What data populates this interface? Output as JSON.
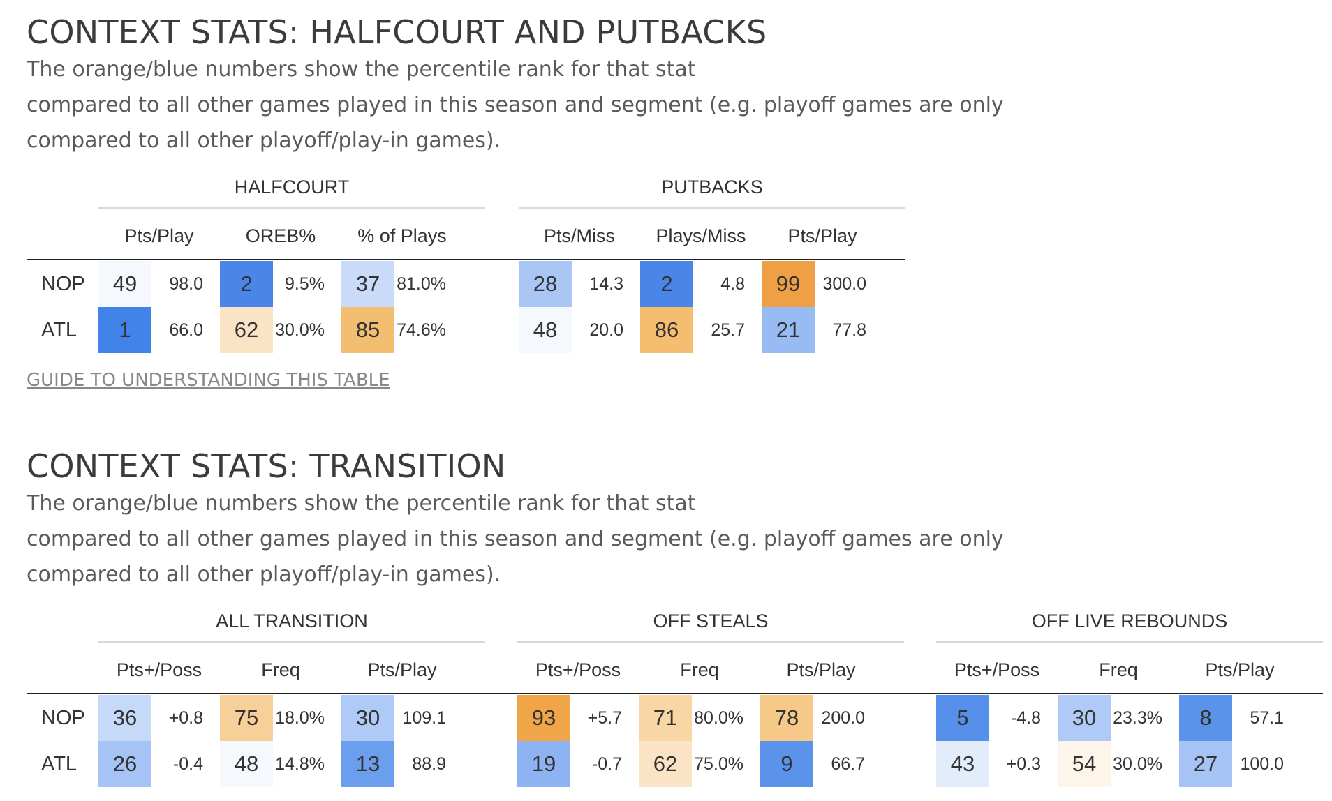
{
  "sections": [
    {
      "title": "CONTEXT STATS: HALFCOURT AND PUTBACKS",
      "description": [
        "The orange/blue numbers show the percentile rank for that stat",
        "compared to all other games played in this season and segment (e.g. playoff games are only",
        "compared to all other playoff/play-in games)."
      ],
      "groups": [
        {
          "label": "HALFCOURT",
          "columns": [
            "Pts/Play",
            "OREB%",
            "% of Plays"
          ]
        },
        {
          "label": "PUTBACKS",
          "columns": [
            "Pts/Miss",
            "Plays/Miss",
            "Pts/Play"
          ]
        }
      ],
      "rows": [
        {
          "team": "NOP",
          "cells": [
            {
              "rank": "49",
              "value": "98.0",
              "color": "#f5f8fd"
            },
            {
              "rank": "2",
              "value": "9.5%",
              "color": "#4a86e8"
            },
            {
              "rank": "37",
              "value": "81.0%",
              "color": "#c9dbf8"
            },
            {
              "rank": "28",
              "value": "14.3",
              "color": "#a9c6f5"
            },
            {
              "rank": "2",
              "value": "4.8",
              "color": "#4a86e8"
            },
            {
              "rank": "99",
              "value": "300.0",
              "color": "#f0a044"
            }
          ]
        },
        {
          "team": "ATL",
          "cells": [
            {
              "rank": "1",
              "value": "66.0",
              "color": "#4283ea"
            },
            {
              "rank": "62",
              "value": "30.0%",
              "color": "#fbe3c5"
            },
            {
              "rank": "85",
              "value": "74.6%",
              "color": "#f4be72"
            },
            {
              "rank": "48",
              "value": "20.0",
              "color": "#f5f8fd"
            },
            {
              "rank": "86",
              "value": "25.7",
              "color": "#f4bd70"
            },
            {
              "rank": "21",
              "value": "77.8",
              "color": "#98bbf4"
            }
          ]
        }
      ],
      "guide_link": "GUIDE TO UNDERSTANDING THIS TABLE"
    },
    {
      "title": "CONTEXT STATS: TRANSITION",
      "description": [
        "The orange/blue numbers show the percentile rank for that stat",
        "compared to all other games played in this season and segment (e.g. playoff games are only",
        "compared to all other playoff/play-in games)."
      ],
      "groups": [
        {
          "label": "ALL TRANSITION",
          "columns": [
            "Pts+/Poss",
            "Freq",
            "Pts/Play"
          ]
        },
        {
          "label": "OFF STEALS",
          "columns": [
            "Pts+/Poss",
            "Freq",
            "Pts/Play"
          ]
        },
        {
          "label": "OFF LIVE REBOUNDS",
          "columns": [
            "Pts+/Poss",
            "Freq",
            "Pts/Play"
          ]
        }
      ],
      "rows": [
        {
          "team": "NOP",
          "cells": [
            {
              "rank": "36",
              "value": "+0.8",
              "color": "#c6d9f8"
            },
            {
              "rank": "75",
              "value": "18.0%",
              "color": "#f7cf98"
            },
            {
              "rank": "30",
              "value": "109.1",
              "color": "#afcaf6"
            },
            {
              "rank": "93",
              "value": "+5.7",
              "color": "#f0a548"
            },
            {
              "rank": "71",
              "value": "80.0%",
              "color": "#f8d6a6"
            },
            {
              "rank": "78",
              "value": "200.0",
              "color": "#f6c989"
            },
            {
              "rank": "5",
              "value": "-4.8",
              "color": "#5690ea"
            },
            {
              "rank": "30",
              "value": "23.3%",
              "color": "#afcaf6"
            },
            {
              "rank": "8",
              "value": "57.1",
              "color": "#5b93eb"
            }
          ]
        },
        {
          "team": "ATL",
          "cells": [
            {
              "rank": "26",
              "value": "-0.4",
              "color": "#a5c3f5"
            },
            {
              "rank": "48",
              "value": "14.8%",
              "color": "#f5f8fd"
            },
            {
              "rank": "13",
              "value": "88.9",
              "color": "#6c9eee"
            },
            {
              "rank": "19",
              "value": "-0.7",
              "color": "#8db3f2"
            },
            {
              "rank": "62",
              "value": "75.0%",
              "color": "#fbe3c5"
            },
            {
              "rank": "9",
              "value": "66.7",
              "color": "#5b93eb"
            },
            {
              "rank": "43",
              "value": "+0.3",
              "color": "#e3ecfb"
            },
            {
              "rank": "54",
              "value": "30.0%",
              "color": "#fdf5ea"
            },
            {
              "rank": "27",
              "value": "100.0",
              "color": "#a5c3f5"
            }
          ]
        }
      ]
    }
  ]
}
